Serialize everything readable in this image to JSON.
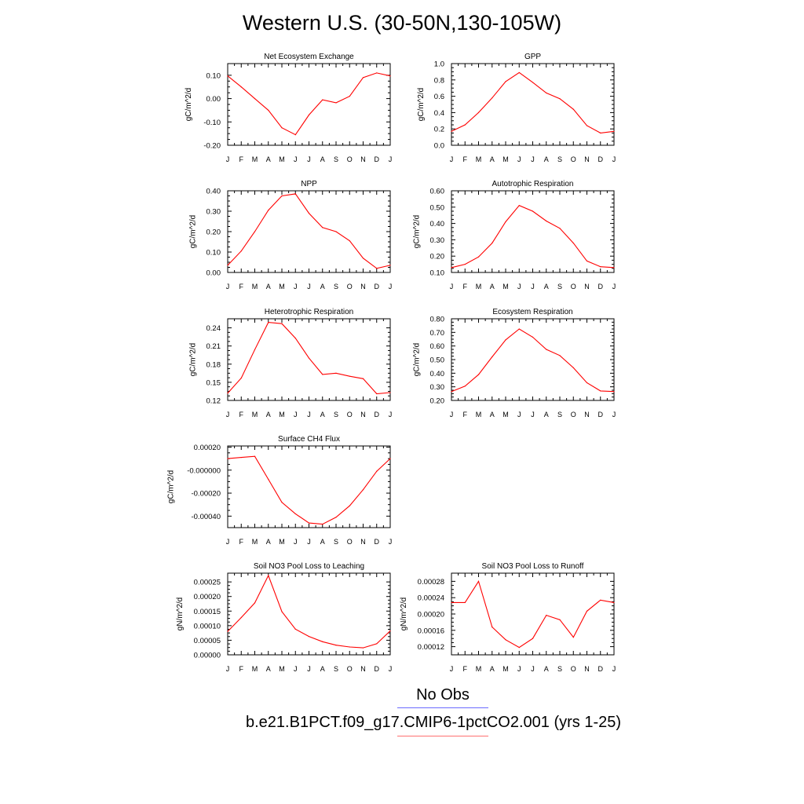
{
  "figure": {
    "title": "Western U.S. (30-50N,130-105W)",
    "legend": [
      {
        "label": "No Obs",
        "color": "#6b6bff"
      },
      {
        "label": "b.e21.B1PCT.f09_g17.CMIP6-1pctCO2.001 (yrs 1-25)",
        "color": "#ff0000"
      }
    ]
  },
  "chart_data": [
    {
      "type": "line",
      "title": "Net Ecosystem Exchange",
      "xlabel": "",
      "ylabel": "gC/m^2/d",
      "categories": [
        "J",
        "F",
        "M",
        "A",
        "M",
        "J",
        "J",
        "A",
        "S",
        "O",
        "N",
        "D",
        "J"
      ],
      "ylim": [
        -0.2,
        0.15
      ],
      "yticks": [
        -0.2,
        -0.1,
        0.0,
        0.1
      ],
      "ytick_labels": [
        "-0.20",
        "-0.10",
        "0.00",
        "0.10"
      ],
      "series": [
        {
          "color": "#ff0000",
          "values": [
            0.097,
            0.05,
            0.0,
            -0.05,
            -0.125,
            -0.155,
            -0.07,
            -0.005,
            -0.018,
            0.01,
            0.09,
            0.11,
            0.097
          ]
        }
      ]
    },
    {
      "type": "line",
      "title": "GPP",
      "xlabel": "",
      "ylabel": "gC/m^2/d",
      "categories": [
        "J",
        "F",
        "M",
        "A",
        "M",
        "J",
        "J",
        "A",
        "S",
        "O",
        "N",
        "D",
        "J"
      ],
      "ylim": [
        0.0,
        1.0
      ],
      "yticks": [
        0.0,
        0.2,
        0.4,
        0.6,
        0.8,
        1.0
      ],
      "ytick_labels": [
        "0.0",
        "0.2",
        "0.4",
        "0.6",
        "0.8",
        "1.0"
      ],
      "series": [
        {
          "color": "#ff0000",
          "values": [
            0.17,
            0.25,
            0.4,
            0.58,
            0.78,
            0.89,
            0.77,
            0.64,
            0.57,
            0.44,
            0.24,
            0.15,
            0.17
          ]
        }
      ]
    },
    {
      "type": "line",
      "title": "NPP",
      "xlabel": "",
      "ylabel": "gC/m^2/d",
      "categories": [
        "J",
        "F",
        "M",
        "A",
        "M",
        "J",
        "J",
        "A",
        "S",
        "O",
        "N",
        "D",
        "J"
      ],
      "ylim": [
        0.0,
        0.4
      ],
      "yticks": [
        0.0,
        0.1,
        0.2,
        0.3,
        0.4
      ],
      "ytick_labels": [
        "0.00",
        "0.10",
        "0.20",
        "0.30",
        "0.40"
      ],
      "series": [
        {
          "color": "#ff0000",
          "values": [
            0.035,
            0.105,
            0.2,
            0.305,
            0.375,
            0.385,
            0.29,
            0.22,
            0.2,
            0.155,
            0.07,
            0.02,
            0.035
          ]
        }
      ]
    },
    {
      "type": "line",
      "title": "Autotrophic Respiration",
      "xlabel": "",
      "ylabel": "gC/m^2/d",
      "categories": [
        "J",
        "F",
        "M",
        "A",
        "M",
        "J",
        "J",
        "A",
        "S",
        "O",
        "N",
        "D",
        "J"
      ],
      "ylim": [
        0.1,
        0.6
      ],
      "yticks": [
        0.1,
        0.2,
        0.3,
        0.4,
        0.5,
        0.6
      ],
      "ytick_labels": [
        "0.10",
        "0.20",
        "0.30",
        "0.40",
        "0.50",
        "0.60"
      ],
      "series": [
        {
          "color": "#ff0000",
          "values": [
            0.13,
            0.15,
            0.195,
            0.28,
            0.41,
            0.51,
            0.475,
            0.415,
            0.37,
            0.28,
            0.17,
            0.135,
            0.13
          ]
        }
      ]
    },
    {
      "type": "line",
      "title": "Heterotrophic Respiration",
      "xlabel": "",
      "ylabel": "gC/m^2/d",
      "categories": [
        "J",
        "F",
        "M",
        "A",
        "M",
        "J",
        "J",
        "A",
        "S",
        "O",
        "N",
        "D",
        "J"
      ],
      "ylim": [
        0.12,
        0.255
      ],
      "yticks": [
        0.12,
        0.15,
        0.18,
        0.21,
        0.24
      ],
      "ytick_labels": [
        "0.12",
        "0.15",
        "0.18",
        "0.21",
        "0.24"
      ],
      "series": [
        {
          "color": "#ff0000",
          "values": [
            0.132,
            0.157,
            0.204,
            0.249,
            0.247,
            0.223,
            0.19,
            0.163,
            0.165,
            0.16,
            0.156,
            0.131,
            0.133
          ]
        }
      ]
    },
    {
      "type": "line",
      "title": "Ecosystem Respiration",
      "xlabel": "",
      "ylabel": "gC/m^2/d",
      "categories": [
        "J",
        "F",
        "M",
        "A",
        "M",
        "J",
        "J",
        "A",
        "S",
        "O",
        "N",
        "D",
        "J"
      ],
      "ylim": [
        0.2,
        0.8
      ],
      "yticks": [
        0.2,
        0.3,
        0.4,
        0.5,
        0.6,
        0.7,
        0.8
      ],
      "ytick_labels": [
        "0.20",
        "0.30",
        "0.40",
        "0.50",
        "0.60",
        "0.70",
        "0.80"
      ],
      "series": [
        {
          "color": "#ff0000",
          "values": [
            0.265,
            0.305,
            0.39,
            0.52,
            0.645,
            0.725,
            0.665,
            0.575,
            0.53,
            0.44,
            0.33,
            0.27,
            0.265
          ]
        }
      ]
    },
    {
      "type": "line",
      "title": "Surface CH4 Flux",
      "xlabel": "",
      "ylabel": "gC/m^2/d",
      "categories": [
        "J",
        "F",
        "M",
        "A",
        "M",
        "J",
        "J",
        "A",
        "S",
        "O",
        "N",
        "D",
        "J"
      ],
      "ylim": [
        -0.0005,
        0.00021
      ],
      "yticks": [
        -0.0004,
        -0.0002,
        0.0,
        0.0002
      ],
      "ytick_labels": [
        "-0.00040",
        "-0.00020",
        "-0.000000",
        "0.00020"
      ],
      "series": [
        {
          "color": "#ff0000",
          "values": [
            0.0001,
            0.00011,
            0.00012,
            -8e-05,
            -0.00028,
            -0.00038,
            -0.00046,
            -0.00047,
            -0.00041,
            -0.00031,
            -0.00017,
            -1e-05,
            0.0001
          ]
        }
      ]
    },
    {
      "type": "line",
      "title": "Soil NO3 Pool Loss to Leaching",
      "xlabel": "",
      "ylabel": "gN/m^2/d",
      "categories": [
        "J",
        "F",
        "M",
        "A",
        "M",
        "J",
        "J",
        "A",
        "S",
        "O",
        "N",
        "D",
        "J"
      ],
      "ylim": [
        0.0,
        0.00028
      ],
      "yticks": [
        0.0,
        5e-05,
        0.0001,
        0.00015,
        0.0002,
        0.00025
      ],
      "ytick_labels": [
        "0.00000",
        "0.00005",
        "0.00010",
        "0.00015",
        "0.00020",
        "0.00025"
      ],
      "series": [
        {
          "color": "#ff0000",
          "values": [
            8e-05,
            0.000128,
            0.000178,
            0.000272,
            0.000148,
            8.8e-05,
            6.3e-05,
            4.5e-05,
            3.3e-05,
            2.7e-05,
            2.4e-05,
            3.8e-05,
            8.2e-05
          ]
        }
      ]
    },
    {
      "type": "line",
      "title": "Soil NO3 Pool Loss to Runoff",
      "xlabel": "",
      "ylabel": "gN/m^2/d",
      "categories": [
        "J",
        "F",
        "M",
        "A",
        "M",
        "J",
        "J",
        "A",
        "S",
        "O",
        "N",
        "D",
        "J"
      ],
      "ylim": [
        0.0001,
        0.0003
      ],
      "yticks": [
        0.00012,
        0.00016,
        0.0002,
        0.00024,
        0.00028
      ],
      "ytick_labels": [
        "0.00012",
        "0.00016",
        "0.00020",
        "0.00024",
        "0.00028"
      ],
      "series": [
        {
          "color": "#ff0000",
          "values": [
            0.000228,
            0.000228,
            0.00028,
            0.000168,
            0.000137,
            0.000118,
            0.00014,
            0.000197,
            0.000186,
            0.000143,
            0.000207,
            0.000234,
            0.000228
          ]
        }
      ]
    }
  ]
}
